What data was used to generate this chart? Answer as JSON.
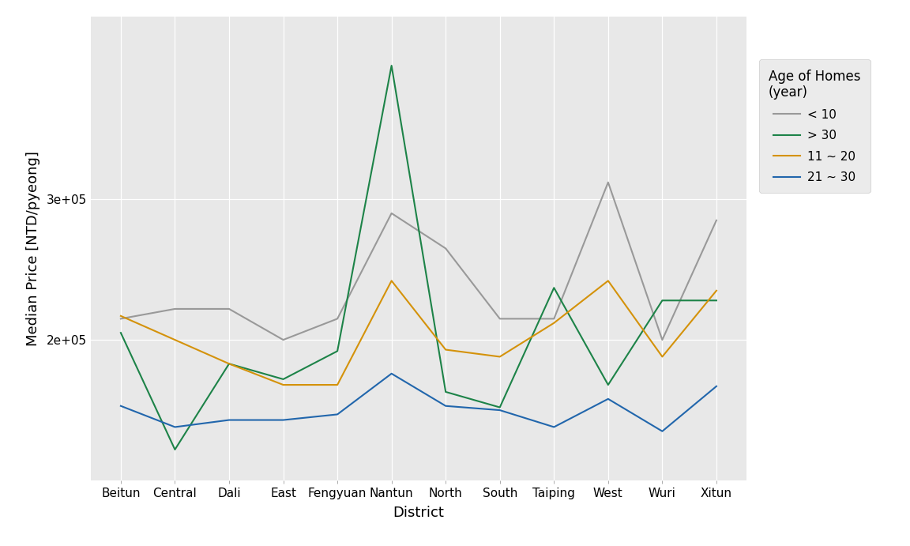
{
  "districts": [
    "Beitun",
    "Central",
    "Dali",
    "East",
    "Fengyuan",
    "Nantun",
    "North",
    "South",
    "Taiping",
    "West",
    "Wuri",
    "Xitun"
  ],
  "series": {
    "< 10": {
      "color": "#999999",
      "values": [
        215000,
        222000,
        222000,
        200000,
        215000,
        290000,
        265000,
        215000,
        215000,
        312000,
        200000,
        285000
      ]
    },
    "> 30": {
      "color": "#1d8348",
      "values": [
        205000,
        122000,
        183000,
        172000,
        192000,
        395000,
        163000,
        152000,
        237000,
        168000,
        228000,
        228000
      ]
    },
    "11 ~ 20": {
      "color": "#d4920a",
      "values": [
        217000,
        200000,
        183000,
        168000,
        168000,
        242000,
        193000,
        188000,
        212000,
        242000,
        188000,
        235000
      ]
    },
    "21 ~ 30": {
      "color": "#2166ac",
      "values": [
        153000,
        138000,
        143000,
        143000,
        147000,
        176000,
        153000,
        150000,
        138000,
        158000,
        135000,
        167000
      ]
    }
  },
  "ylabel": "Median Price [NTD/pyeong]",
  "xlabel": "District",
  "legend_title": "Age of Homes\n(year)",
  "ylim_low": 100000,
  "ylim_high": 430000,
  "ytick_vals": [
    200000,
    300000
  ],
  "background_color": "#e8e8e8",
  "panel_color": "#e8e8e8",
  "grid_color": "#ffffff",
  "legend_bg": "#ebebeb",
  "line_width": 1.5,
  "title_fontsize": 13,
  "axis_fontsize": 13,
  "tick_fontsize": 11,
  "legend_fontsize": 11,
  "legend_title_fontsize": 12
}
